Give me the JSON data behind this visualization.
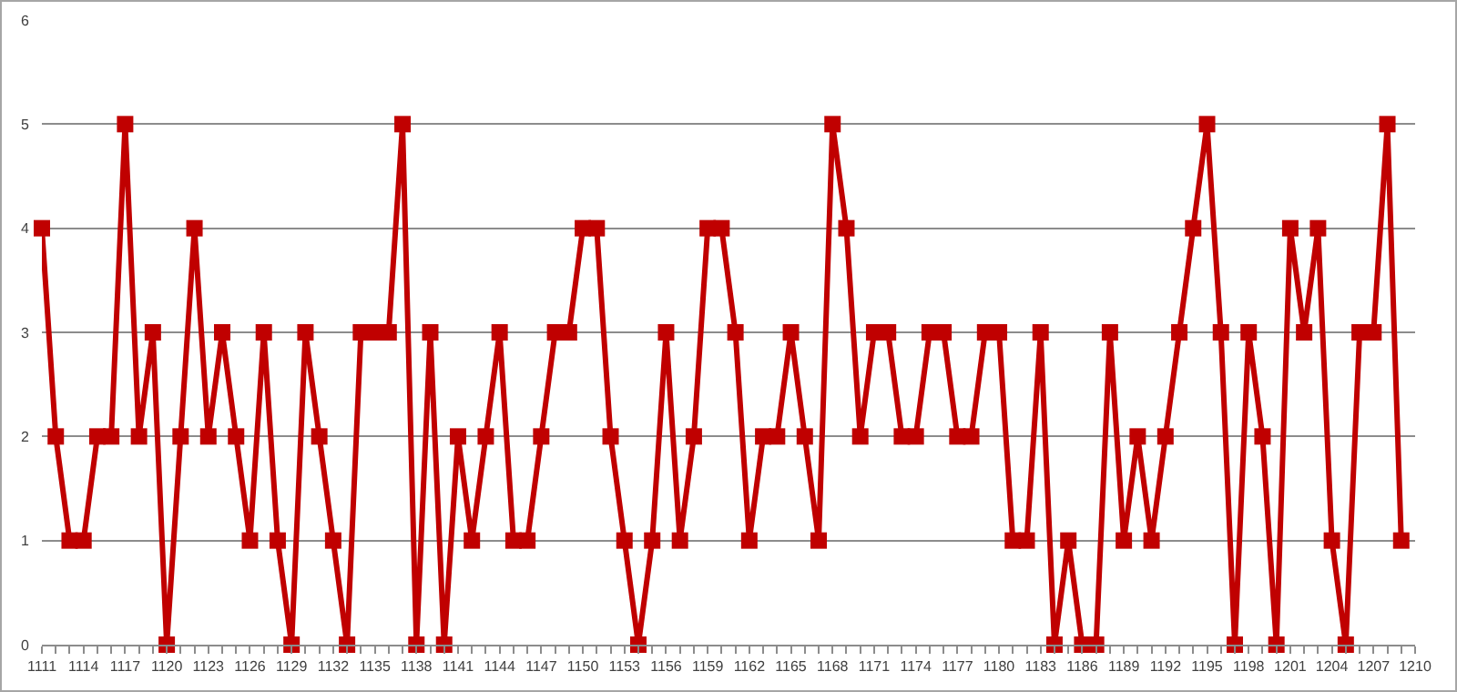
{
  "chart_data": {
    "type": "line",
    "x": [
      1111,
      1112,
      1113,
      1114,
      1115,
      1116,
      1117,
      1118,
      1119,
      1120,
      1121,
      1122,
      1123,
      1124,
      1125,
      1126,
      1127,
      1128,
      1129,
      1130,
      1131,
      1132,
      1133,
      1134,
      1135,
      1136,
      1137,
      1138,
      1139,
      1140,
      1141,
      1142,
      1143,
      1144,
      1145,
      1146,
      1147,
      1148,
      1149,
      1150,
      1151,
      1152,
      1153,
      1154,
      1155,
      1156,
      1157,
      1158,
      1159,
      1160,
      1161,
      1162,
      1163,
      1164,
      1165,
      1166,
      1167,
      1168,
      1169,
      1170,
      1171,
      1172,
      1173,
      1174,
      1175,
      1176,
      1177,
      1178,
      1179,
      1180,
      1181,
      1182,
      1183,
      1184,
      1185,
      1186,
      1187,
      1188,
      1189,
      1190,
      1191,
      1192,
      1193,
      1194,
      1195,
      1196,
      1197,
      1198,
      1199,
      1200,
      1201,
      1202,
      1203,
      1204,
      1205,
      1206,
      1207,
      1208,
      1209
    ],
    "series": [
      {
        "color": "#c00000",
        "values": [
          4,
          2,
          1,
          1,
          2,
          2,
          5,
          2,
          3,
          0,
          2,
          4,
          2,
          3,
          2,
          1,
          3,
          1,
          0,
          3,
          2,
          1,
          0,
          3,
          3,
          3,
          5,
          0,
          3,
          0,
          2,
          1,
          2,
          3,
          1,
          1,
          2,
          3,
          3,
          4,
          4,
          2,
          1,
          0,
          1,
          3,
          1,
          2,
          4,
          4,
          3,
          1,
          2,
          2,
          3,
          2,
          1,
          5,
          4,
          2,
          3,
          3,
          2,
          2,
          3,
          3,
          2,
          2,
          3,
          3,
          1,
          1,
          3,
          0,
          1,
          0,
          0,
          3,
          1,
          2,
          1,
          2,
          3,
          4,
          5,
          3,
          0,
          3,
          2,
          0,
          4,
          3,
          4,
          1,
          0,
          3,
          3,
          5,
          1
        ]
      }
    ],
    "xlim": [
      1111,
      1210
    ],
    "xticks": [
      1111,
      1114,
      1117,
      1120,
      1123,
      1126,
      1129,
      1132,
      1135,
      1138,
      1141,
      1144,
      1147,
      1150,
      1153,
      1156,
      1159,
      1162,
      1165,
      1168,
      1171,
      1174,
      1177,
      1180,
      1183,
      1186,
      1189,
      1192,
      1195,
      1198,
      1201,
      1204,
      1207,
      1210
    ],
    "ylim": [
      0,
      6
    ],
    "yticks": [
      0,
      1,
      2,
      3,
      4,
      5,
      6
    ],
    "grid": "y",
    "marker": "square",
    "line_style": "solid"
  }
}
